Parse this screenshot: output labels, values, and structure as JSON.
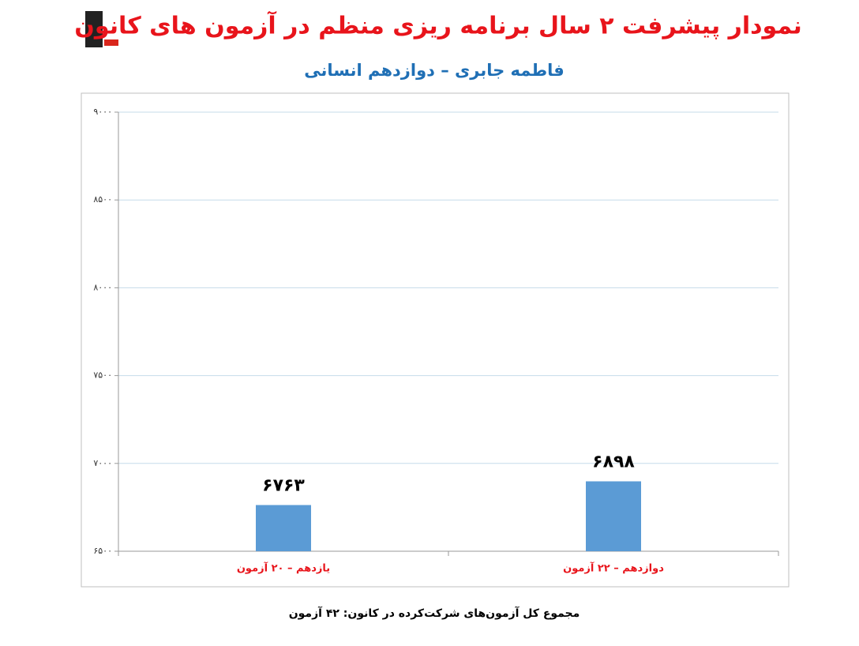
{
  "chart_data": {
    "type": "bar",
    "title": "نمودار پیشرفت ۲ سال برنامه ریزی منظم در آزمون های کانون",
    "subtitle": "فاطمه جابری – دوازدهم انسانی",
    "categories": [
      "یازدهم – ۲۰ آزمون",
      "دوازدهم – ۲۲ آزمون"
    ],
    "values": [
      6763,
      6898
    ],
    "value_labels": [
      "۶۷۶۳",
      "۶۸۹۸"
    ],
    "color": "#5b9bd5",
    "ylim": [
      6500,
      9000
    ],
    "yticks": [
      {
        "value": 6500,
        "label": "۶۵۰۰"
      },
      {
        "value": 7000,
        "label": "۷۰۰۰"
      },
      {
        "value": 7500,
        "label": "۷۵۰۰"
      },
      {
        "value": 8000,
        "label": "۸۰۰۰"
      },
      {
        "value": 8500,
        "label": "۸۵۰۰"
      },
      {
        "value": 9000,
        "label": "۹۰۰۰"
      }
    ],
    "grid": true,
    "footnote": "مجموع کل آزمون‌های شرکت‌کرده در کانون: ۴۲ آزمون"
  }
}
